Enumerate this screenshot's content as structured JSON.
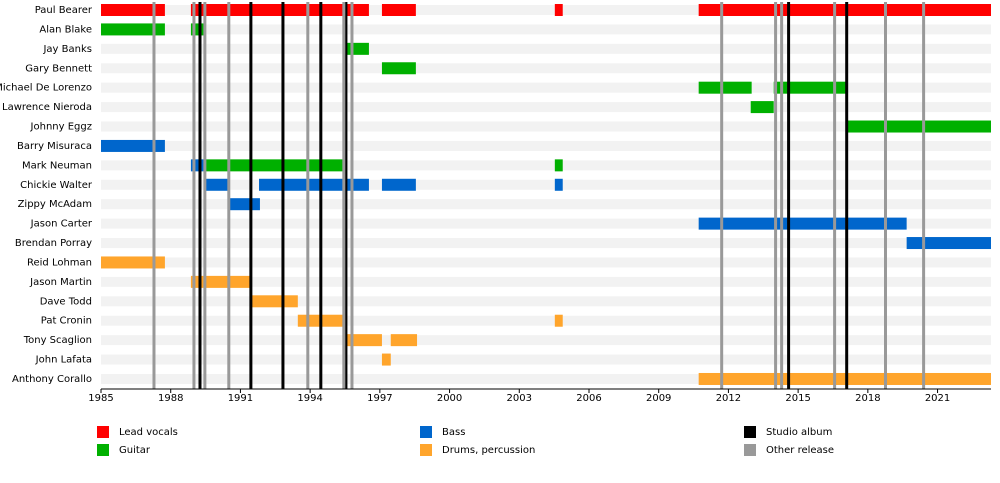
{
  "chart_data": {
    "type": "timeline",
    "categories": [
      "Paul Bearer",
      "Alan Blake",
      "Jay Banks",
      "Gary Bennett",
      "Michael De Lorenzo",
      "Lawrence Nieroda",
      "Johnny Eggz",
      "Barry Misuraca",
      "Mark Neuman",
      "Chickie Walter",
      "Zippy McAdam",
      "Jason Carter",
      "Brendan Porray",
      "Reid Lohman",
      "Jason Martin",
      "Dave Todd",
      "Pat Cronin",
      "Tony Scaglion",
      "John Lafata",
      "Anthony Corallo"
    ],
    "xlim": [
      1985,
      2023.3
    ],
    "xticks": [
      1985,
      1988,
      1991,
      1994,
      1997,
      2000,
      2003,
      2006,
      2009,
      2012,
      2015,
      2018,
      2021
    ],
    "series": [
      {
        "name": "Lead vocals",
        "color": "#ff0000",
        "periods": [
          {
            "member": "Paul Bearer",
            "start": 1985,
            "end": 1987.75
          },
          {
            "member": "Paul Bearer",
            "start": 1988.87,
            "end": 1996.53
          },
          {
            "member": "Paul Bearer",
            "start": 1997.09,
            "end": 1998.55
          },
          {
            "member": "Paul Bearer",
            "start": 2004.53,
            "end": 2004.87
          },
          {
            "member": "Paul Bearer",
            "start": 2010.72,
            "end": 2023.3
          }
        ]
      },
      {
        "name": "Guitar",
        "color": "#00b000",
        "periods": [
          {
            "member": "Alan Blake",
            "start": 1985,
            "end": 1987.75
          },
          {
            "member": "Alan Blake",
            "start": 1988.87,
            "end": 1989.47
          },
          {
            "member": "Jay Banks",
            "start": 1995.5,
            "end": 1996.53
          },
          {
            "member": "Gary Bennett",
            "start": 1997.09,
            "end": 1998.55
          },
          {
            "member": "Michael De Lorenzo",
            "start": 2010.72,
            "end": 2013.0
          },
          {
            "member": "Michael De Lorenzo",
            "start": 2013.95,
            "end": 2017.04
          },
          {
            "member": "Lawrence Nieroda",
            "start": 2012.96,
            "end": 2013.95
          },
          {
            "member": "Johnny Eggz",
            "start": 2017.04,
            "end": 2023.3
          },
          {
            "member": "Mark Neuman",
            "start": 1989.47,
            "end": 1995.5
          },
          {
            "member": "Mark Neuman",
            "start": 2004.53,
            "end": 2004.87
          }
        ]
      },
      {
        "name": "Bass",
        "color": "#0066cc",
        "periods": [
          {
            "member": "Barry Misuraca",
            "start": 1985,
            "end": 1987.75
          },
          {
            "member": "Mark Neuman",
            "start": 1988.87,
            "end": 1989.47
          },
          {
            "member": "Chickie Walter",
            "start": 1989.47,
            "end": 1990.5
          },
          {
            "member": "Chickie Walter",
            "start": 1991.8,
            "end": 1996.53
          },
          {
            "member": "Chickie Walter",
            "start": 1997.09,
            "end": 1998.55
          },
          {
            "member": "Chickie Walter",
            "start": 2004.53,
            "end": 2004.87
          },
          {
            "member": "Zippy McAdam",
            "start": 1990.5,
            "end": 1991.84
          },
          {
            "member": "Jason Carter",
            "start": 2010.72,
            "end": 2019.67
          },
          {
            "member": "Brendan Porray",
            "start": 2019.67,
            "end": 2023.3
          }
        ]
      },
      {
        "name": "Drums, percussion",
        "color": "#ffa52c",
        "periods": [
          {
            "member": "Reid Lohman",
            "start": 1985,
            "end": 1987.75
          },
          {
            "member": "Jason Martin",
            "start": 1988.87,
            "end": 1991.45
          },
          {
            "member": "Dave Todd",
            "start": 1991.45,
            "end": 1993.47
          },
          {
            "member": "Pat Cronin",
            "start": 1993.47,
            "end": 1995.5
          },
          {
            "member": "Pat Cronin",
            "start": 2004.53,
            "end": 2004.87
          },
          {
            "member": "Tony Scaglion",
            "start": 1995.5,
            "end": 1997.09
          },
          {
            "member": "Tony Scaglion",
            "start": 1997.47,
            "end": 1998.6
          },
          {
            "member": "John Lafata",
            "start": 1997.09,
            "end": 1997.47
          },
          {
            "member": "Anthony Corallo",
            "start": 2010.72,
            "end": 2023.3
          }
        ]
      }
    ],
    "releases": [
      {
        "name": "Studio album",
        "color": "#000000",
        "x": [
          1989.26,
          1991.45,
          1992.83,
          1994.46,
          1995.54,
          2014.59,
          2017.09
        ]
      },
      {
        "name": "Other release",
        "color": "#999999",
        "x": [
          1987.28,
          1989.0,
          1989.47,
          1990.5,
          1993.9,
          1995.45,
          1995.8,
          2011.71,
          2014.03,
          2014.29,
          2016.57,
          2018.76,
          2020.4
        ]
      }
    ]
  }
}
